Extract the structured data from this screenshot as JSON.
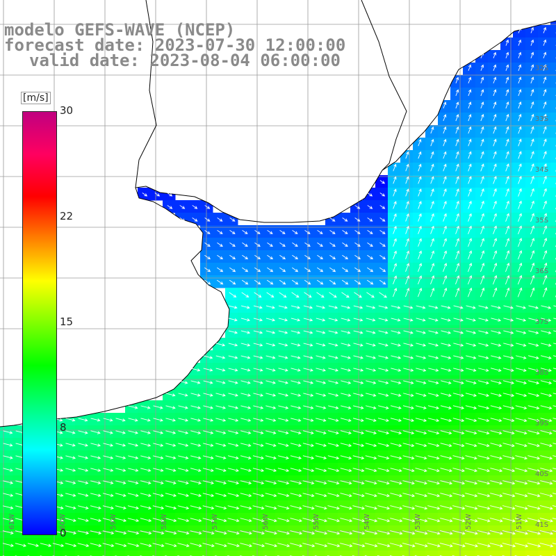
{
  "title": {
    "line1": "modelo GEFS-WAVE (NCEP)",
    "line2": "forecast date: 2023-07-30 12:00:00",
    "line3": "valid date: 2023-08-04 06:00:00"
  },
  "colorbar": {
    "unit": "[m/s]",
    "ticks": [
      "30",
      "22",
      "15",
      "8",
      "0"
    ],
    "colors": [
      "#0000ff",
      "#0080ff",
      "#00ffff",
      "#00ff80",
      "#00ff00",
      "#80ff00",
      "#ffff00",
      "#ff8000",
      "#ff0000",
      "#ff0060",
      "#c00080"
    ]
  },
  "lat_labels": [
    "32S",
    "33S",
    "34S",
    "35S",
    "36S",
    "37S",
    "38S",
    "39S",
    "40S",
    "41S"
  ],
  "lon_labels": [
    "61W",
    "60W",
    "59W",
    "58W",
    "57W",
    "56W",
    "55W",
    "54W",
    "53W",
    "52W",
    "51W"
  ],
  "map": {
    "land_color": "#ffffff",
    "coast_color": "#000000",
    "grid_color": "#9a9a9a",
    "arrow_color": "#ffffff"
  }
}
